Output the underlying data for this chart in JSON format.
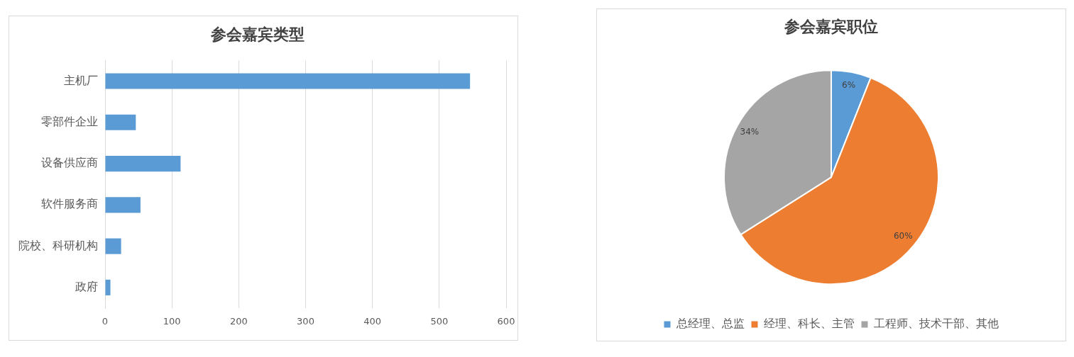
{
  "chart_data": [
    {
      "type": "bar",
      "title": "参会嘉宾类型",
      "orientation": "horizontal",
      "categories": [
        "主机厂",
        "零部件企业",
        "设备供应商",
        "软件服务商",
        "院校、科研机构",
        "政府"
      ],
      "values": [
        546,
        46,
        113,
        53,
        24,
        8
      ],
      "color": "#5b9bd5",
      "xlim": [
        0,
        600
      ],
      "xticks": [
        0,
        100,
        200,
        300,
        400,
        500,
        600
      ],
      "grid": "x"
    },
    {
      "type": "pie",
      "title": "参会嘉宾职位",
      "categories": [
        "总经理、总监",
        "经理、科长、主管",
        "工程师、技术干部、其他"
      ],
      "values": [
        6,
        60,
        34
      ],
      "colors": [
        "#5b9bd5",
        "#ed7d31",
        "#a5a5a5"
      ],
      "value_labels": [
        "6%",
        "60%",
        "34%"
      ],
      "legend": "bottom"
    }
  ]
}
